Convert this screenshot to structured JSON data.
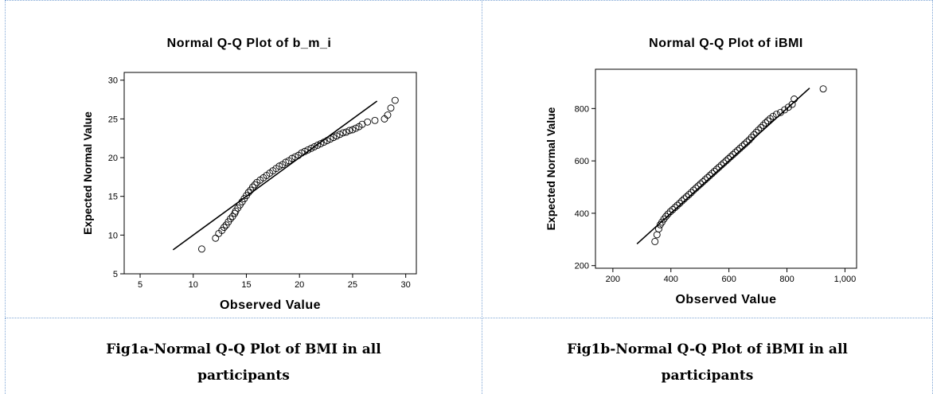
{
  "chart_data": [
    {
      "type": "scatter",
      "title": "Normal Q-Q Plot of b_m_i",
      "xlabel": "Observed Value",
      "ylabel": "Expected Normal Value",
      "xlim": [
        3.5,
        31
      ],
      "ylim": [
        5,
        31
      ],
      "xticks": [
        5,
        10,
        15,
        20,
        25,
        30
      ],
      "yticks": [
        5,
        10,
        15,
        20,
        25,
        30
      ],
      "xtick_labels": [
        "5",
        "10",
        "15",
        "20",
        "25",
        "30"
      ],
      "ytick_labels": [
        "5",
        "10",
        "15",
        "20",
        "25",
        "30"
      ],
      "grid": false,
      "reference_line": {
        "x": [
          8.1,
          27.3
        ],
        "y": [
          8.1,
          27.3
        ]
      },
      "points": {
        "x": [
          10.8,
          12.1,
          12.4,
          12.7,
          12.9,
          13.1,
          13.3,
          13.5,
          13.7,
          13.9,
          14.0,
          14.2,
          14.4,
          14.6,
          14.8,
          15.0,
          15.2,
          15.4,
          15.6,
          15.8,
          16.0,
          16.3,
          16.6,
          16.9,
          17.2,
          17.5,
          17.8,
          18.1,
          18.4,
          18.7,
          19.0,
          19.3,
          19.6,
          19.9,
          20.2,
          20.5,
          20.8,
          21.1,
          21.4,
          21.7,
          22.0,
          22.3,
          22.6,
          22.9,
          23.2,
          23.5,
          23.8,
          24.1,
          24.4,
          24.7,
          25.0,
          25.3,
          25.6,
          25.9,
          26.4,
          27.1,
          28.0,
          28.3,
          28.6,
          29.0
        ],
        "y": [
          8.2,
          9.6,
          10.2,
          10.6,
          11.0,
          11.3,
          11.7,
          12.1,
          12.4,
          12.8,
          13.1,
          13.5,
          13.9,
          14.3,
          14.7,
          15.1,
          15.5,
          15.8,
          16.2,
          16.5,
          16.8,
          17.1,
          17.4,
          17.7,
          18.0,
          18.3,
          18.6,
          18.9,
          19.1,
          19.4,
          19.6,
          19.9,
          20.1,
          20.3,
          20.6,
          20.8,
          21.0,
          21.2,
          21.4,
          21.6,
          21.8,
          22.0,
          22.2,
          22.4,
          22.6,
          22.8,
          23.0,
          23.2,
          23.3,
          23.5,
          23.6,
          23.8,
          24.0,
          24.3,
          24.6,
          24.8,
          25.0,
          25.5,
          26.4,
          27.4
        ]
      }
    },
    {
      "type": "scatter",
      "title": "Normal Q-Q Plot of iBMI",
      "xlabel": "Observed Value",
      "ylabel": "Expected Normal Value",
      "xlim": [
        140,
        1040
      ],
      "ylim": [
        190,
        950
      ],
      "xticks": [
        200,
        400,
        600,
        800,
        1000
      ],
      "yticks": [
        200,
        400,
        600,
        800
      ],
      "xtick_labels": [
        "200",
        "400",
        "600",
        "800",
        "1,000"
      ],
      "ytick_labels": [
        "200",
        "400",
        "600",
        "800"
      ],
      "grid": false,
      "reference_line": {
        "x": [
          283,
          878
        ],
        "y": [
          283,
          878
        ]
      },
      "points": {
        "x": [
          345,
          352,
          358,
          363,
          369,
          376,
          383,
          390,
          398,
          406,
          414,
          422,
          430,
          438,
          446,
          454,
          462,
          470,
          478,
          486,
          494,
          502,
          510,
          518,
          526,
          534,
          542,
          550,
          558,
          566,
          574,
          582,
          590,
          598,
          606,
          614,
          622,
          630,
          638,
          646,
          654,
          662,
          670,
          678,
          686,
          694,
          702,
          710,
          718,
          726,
          734,
          742,
          752,
          764,
          778,
          792,
          805,
          818,
          825,
          925
        ],
        "y": [
          292,
          318,
          340,
          356,
          366,
          378,
          388,
          397,
          406,
          414,
          422,
          430,
          438,
          447,
          455,
          463,
          471,
          479,
          488,
          496,
          504,
          512,
          520,
          528,
          536,
          544,
          552,
          560,
          568,
          576,
          584,
          592,
          600,
          608,
          616,
          624,
          632,
          640,
          648,
          656,
          664,
          672,
          680,
          690,
          700,
          709,
          718,
          727,
          736,
          745,
          753,
          761,
          770,
          778,
          785,
          795,
          805,
          816,
          836,
          875
        ]
      }
    }
  ],
  "captions": {
    "a_line1": "Fig1a-Normal Q-Q Plot of BMI in all",
    "a_line2": "participants",
    "b_line1": "Fig1b-Normal Q-Q Plot of iBMI in all",
    "b_line2": "participants"
  }
}
